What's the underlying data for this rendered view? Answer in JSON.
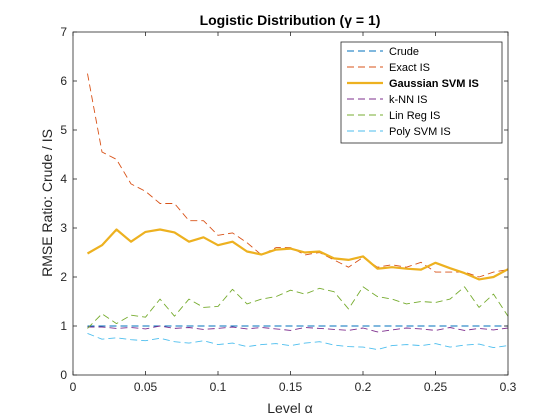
{
  "chart_data": {
    "type": "line",
    "title": "Logistic Distribution (γ = 1)",
    "xlabel": "Level α",
    "ylabel": "RMSE Ratio: Crude / IS",
    "xlim": [
      0,
      0.3
    ],
    "ylim": [
      0,
      7
    ],
    "xticks": [
      0,
      0.05,
      0.1,
      0.15,
      0.2,
      0.25,
      0.3
    ],
    "xtick_labels": [
      "0",
      "0.05",
      "0.1",
      "0.15",
      "0.2",
      "0.25",
      "0.3"
    ],
    "yticks": [
      0,
      1,
      2,
      3,
      4,
      5,
      6,
      7
    ],
    "ytick_labels": [
      "0",
      "1",
      "2",
      "3",
      "4",
      "5",
      "6",
      "7"
    ],
    "grid": false,
    "legend_position": "top-right",
    "x": [
      0.01,
      0.02,
      0.03,
      0.04,
      0.05,
      0.06,
      0.07,
      0.08,
      0.09,
      0.1,
      0.11,
      0.12,
      0.13,
      0.14,
      0.15,
      0.16,
      0.17,
      0.18,
      0.19,
      0.2,
      0.21,
      0.22,
      0.23,
      0.24,
      0.25,
      0.26,
      0.27,
      0.28,
      0.29,
      0.3
    ],
    "series": [
      {
        "name": "Crude",
        "color": "#0072BD",
        "dash": "dashed",
        "width": 0.9,
        "values": [
          1,
          1,
          1,
          1,
          1,
          1,
          1,
          1,
          1,
          1,
          1,
          1,
          1,
          1,
          1,
          1,
          1,
          1,
          1,
          1,
          1,
          1,
          1,
          1,
          1,
          1,
          1,
          1,
          1,
          1
        ]
      },
      {
        "name": "Exact IS",
        "color": "#D95319",
        "dash": "dashed",
        "width": 0.9,
        "values": [
          6.15,
          4.55,
          4.4,
          3.9,
          3.75,
          3.5,
          3.5,
          3.15,
          3.15,
          2.85,
          2.9,
          2.7,
          2.45,
          2.6,
          2.6,
          2.45,
          2.5,
          2.35,
          2.2,
          2.4,
          2.2,
          2.25,
          2.2,
          2.3,
          2.1,
          2.1,
          2.1,
          2.0,
          2.1,
          2.15
        ]
      },
      {
        "name": "Gaussian SVM IS",
        "color": "#EDB120",
        "dash": "solid",
        "width": 2.2,
        "bold": true,
        "values": [
          2.48,
          2.65,
          2.97,
          2.72,
          2.92,
          2.97,
          2.91,
          2.72,
          2.81,
          2.65,
          2.72,
          2.52,
          2.46,
          2.56,
          2.58,
          2.5,
          2.52,
          2.38,
          2.35,
          2.42,
          2.17,
          2.2,
          2.17,
          2.15,
          2.29,
          2.18,
          2.08,
          1.95,
          2.0,
          2.16
        ]
      },
      {
        "name": "k-NN IS",
        "color": "#7E2F8E",
        "dash": "dashed",
        "width": 0.9,
        "values": [
          0.98,
          0.98,
          0.95,
          0.97,
          0.94,
          1.0,
          0.95,
          0.97,
          0.93,
          0.95,
          0.98,
          0.94,
          0.97,
          0.94,
          0.91,
          0.97,
          0.95,
          0.93,
          0.91,
          0.96,
          0.88,
          0.92,
          0.96,
          0.94,
          0.91,
          0.97,
          0.91,
          0.95,
          0.92,
          0.96
        ]
      },
      {
        "name": "Lin Reg IS",
        "color": "#77AC30",
        "dash": "dashed",
        "width": 0.9,
        "values": [
          0.95,
          1.25,
          1.05,
          1.22,
          1.18,
          1.55,
          1.2,
          1.55,
          1.38,
          1.4,
          1.75,
          1.45,
          1.55,
          1.6,
          1.73,
          1.65,
          1.77,
          1.7,
          1.35,
          1.8,
          1.6,
          1.55,
          1.45,
          1.5,
          1.48,
          1.55,
          1.8,
          1.38,
          1.65,
          1.2
        ]
      },
      {
        "name": "Poly SVM IS",
        "color": "#4DBEEE",
        "dash": "dashed",
        "width": 0.9,
        "values": [
          0.85,
          0.73,
          0.76,
          0.72,
          0.7,
          0.75,
          0.68,
          0.65,
          0.7,
          0.62,
          0.65,
          0.58,
          0.62,
          0.64,
          0.6,
          0.65,
          0.68,
          0.61,
          0.58,
          0.57,
          0.52,
          0.6,
          0.62,
          0.6,
          0.64,
          0.57,
          0.61,
          0.63,
          0.56,
          0.6
        ]
      }
    ]
  }
}
